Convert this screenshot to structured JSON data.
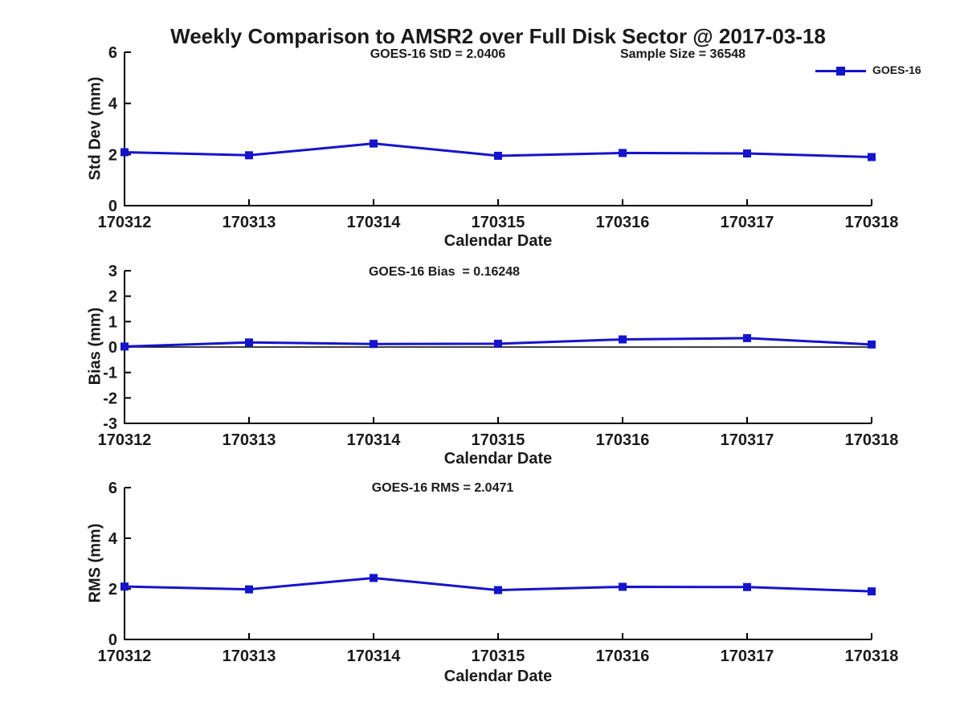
{
  "page": {
    "title": "Weekly Comparison to AMSR2 over Full Disk Sector @ 2017-03-18"
  },
  "colors": {
    "line": "#1414cd",
    "text": "#1a1a1a",
    "axis": "#000000"
  },
  "legend": {
    "label": "GOES-16"
  },
  "chart_data": [
    {
      "type": "line",
      "id": "std-dev",
      "annotations": [
        "GOES-16 StD = 2.0406",
        "Sample Size = 36548"
      ],
      "ylabel": "Std Dev (mm)",
      "xlabel": "Calendar Date",
      "categories": [
        "170312",
        "170313",
        "170314",
        "170315",
        "170316",
        "170317",
        "170318"
      ],
      "series": [
        {
          "name": "GOES-16",
          "values": [
            2.09,
            1.97,
            2.43,
            1.95,
            2.06,
            2.04,
            1.9
          ]
        }
      ],
      "ylim": [
        0,
        6
      ],
      "yticks": [
        0,
        2,
        4,
        6
      ],
      "zero_line": false,
      "legend_position": "top-right",
      "grid": false
    },
    {
      "type": "line",
      "id": "bias",
      "annotations": [
        "GOES-16 Bias  = 0.16248"
      ],
      "ylabel": "Bias (mm)",
      "xlabel": "Calendar Date",
      "categories": [
        "170312",
        "170313",
        "170314",
        "170315",
        "170316",
        "170317",
        "170318"
      ],
      "series": [
        {
          "name": "GOES-16",
          "values": [
            0.02,
            0.18,
            0.12,
            0.13,
            0.3,
            0.35,
            0.1
          ]
        }
      ],
      "ylim": [
        -3,
        3
      ],
      "yticks": [
        -3,
        -2,
        -1,
        0,
        1,
        2,
        3
      ],
      "zero_line": true,
      "grid": false
    },
    {
      "type": "line",
      "id": "rms",
      "annotations": [
        "GOES-16 RMS = 2.0471"
      ],
      "ylabel": "RMS (mm)",
      "xlabel": "Calendar Date",
      "categories": [
        "170312",
        "170313",
        "170314",
        "170315",
        "170316",
        "170317",
        "170318"
      ],
      "series": [
        {
          "name": "GOES-16",
          "values": [
            2.09,
            1.98,
            2.43,
            1.95,
            2.08,
            2.07,
            1.9
          ]
        }
      ],
      "ylim": [
        0,
        6
      ],
      "yticks": [
        0,
        2,
        4,
        6
      ],
      "zero_line": false,
      "grid": false
    }
  ]
}
